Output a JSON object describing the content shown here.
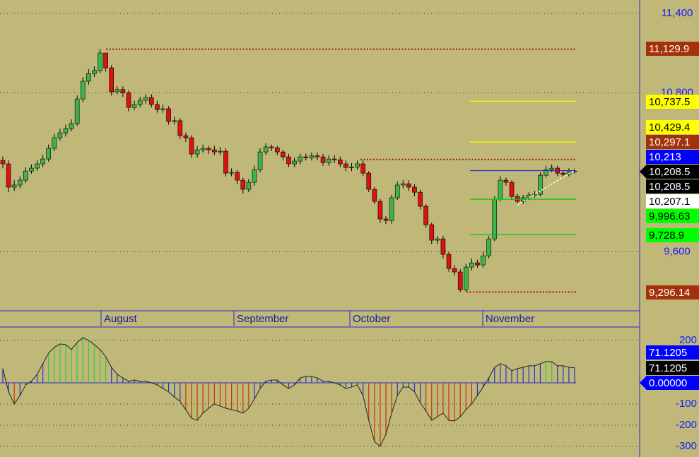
{
  "chart_data": [
    {
      "type": "candlestick",
      "months": [
        "August",
        "September",
        "October",
        "November"
      ],
      "open": [
        10290,
        10264,
        10088,
        10104,
        10141,
        10210,
        10232,
        10264,
        10301,
        10381,
        10461,
        10498,
        10530,
        10568,
        10754,
        10888,
        10946,
        10968,
        11101,
        10989,
        10808,
        10825,
        10800,
        10690,
        10712,
        10744,
        10765,
        10712,
        10674,
        10680,
        10584,
        10590,
        10477,
        10461,
        10338,
        10370,
        10381,
        10370,
        10354,
        10360,
        10194,
        10200,
        10141,
        10072,
        10125,
        10221,
        10354,
        10392,
        10385,
        10354,
        10317,
        10264,
        10285,
        10317,
        10310,
        10325,
        10317,
        10274,
        10301,
        10295,
        10264,
        10237,
        10240,
        10264,
        10194,
        10072,
        9981,
        9848,
        9837,
        10008,
        10104,
        10114,
        10088,
        10050,
        9944,
        9805,
        9688,
        9698,
        9581,
        9474,
        9448,
        9314,
        9485,
        9517,
        9501,
        9570,
        9698,
        9997,
        10141,
        10125,
        10018,
        9981,
        10008,
        10029,
        10034,
        10178,
        10221,
        10232,
        10194,
        10184,
        10205
      ],
      "high": [
        10320,
        10290,
        10140,
        10170,
        10240,
        10260,
        10290,
        10330,
        10410,
        10490,
        10530,
        10560,
        10600,
        10780,
        10920,
        10980,
        11000,
        11130,
        11090,
        11010,
        10850,
        10850,
        10820,
        10740,
        10770,
        10790,
        10790,
        10740,
        10710,
        10700,
        10620,
        10610,
        10500,
        10480,
        10400,
        10410,
        10400,
        10400,
        10390,
        10380,
        10230,
        10220,
        10160,
        10150,
        10250,
        10380,
        10420,
        10410,
        10400,
        10370,
        10340,
        10310,
        10340,
        10340,
        10350,
        10350,
        10340,
        10330,
        10330,
        10320,
        10290,
        10270,
        10290,
        10290,
        10210,
        10090,
        10000,
        9870,
        10030,
        10130,
        10140,
        10140,
        10110,
        10070,
        9960,
        9820,
        9720,
        9720,
        9600,
        9500,
        9470,
        9510,
        9550,
        9540,
        9600,
        9720,
        10020,
        10170,
        10160,
        10140,
        10040,
        10030,
        10050,
        10060,
        10200,
        10250,
        10260,
        10250,
        10210,
        10230,
        10230
      ],
      "low": [
        10230,
        10050,
        10060,
        10080,
        10120,
        10190,
        10210,
        10240,
        10280,
        10360,
        10440,
        10470,
        10510,
        10550,
        10730,
        10860,
        10920,
        10950,
        10960,
        10780,
        10790,
        10770,
        10660,
        10670,
        10690,
        10720,
        10690,
        10650,
        10650,
        10560,
        10560,
        10450,
        10430,
        10310,
        10310,
        10350,
        10340,
        10330,
        10330,
        10170,
        10170,
        10110,
        10040,
        10050,
        10100,
        10200,
        10330,
        10360,
        10330,
        10290,
        10240,
        10240,
        10260,
        10290,
        10290,
        10290,
        10250,
        10250,
        10270,
        10240,
        10210,
        10210,
        10220,
        10170,
        10050,
        9960,
        9820,
        9810,
        9810,
        9990,
        10080,
        10060,
        10020,
        9920,
        9780,
        9660,
        9660,
        9550,
        9450,
        9420,
        9296,
        9300,
        9460,
        9480,
        9480,
        9550,
        9680,
        9980,
        10100,
        9990,
        9960,
        9960,
        9990,
        10010,
        10020,
        10160,
        10200,
        10170,
        10160,
        10170,
        10190
      ],
      "close": [
        10264,
        10088,
        10104,
        10141,
        10210,
        10232,
        10264,
        10301,
        10381,
        10461,
        10498,
        10530,
        10568,
        10754,
        10888,
        10946,
        10968,
        11101,
        10989,
        10808,
        10825,
        10800,
        10690,
        10712,
        10744,
        10765,
        10712,
        10674,
        10680,
        10584,
        10590,
        10477,
        10461,
        10338,
        10370,
        10381,
        10370,
        10354,
        10360,
        10194,
        10200,
        10141,
        10072,
        10125,
        10221,
        10354,
        10392,
        10385,
        10354,
        10317,
        10264,
        10285,
        10317,
        10310,
        10325,
        10317,
        10274,
        10301,
        10295,
        10264,
        10237,
        10240,
        10264,
        10194,
        10072,
        9981,
        9848,
        9837,
        10008,
        10104,
        10114,
        10088,
        10050,
        9944,
        9805,
        9688,
        9698,
        9581,
        9474,
        9448,
        9314,
        9485,
        9517,
        9501,
        9570,
        9698,
        9997,
        10141,
        10125,
        10018,
        9981,
        10008,
        10029,
        10034,
        10178,
        10221,
        10232,
        10194,
        10184,
        10205,
        10210
      ],
      "up_color": "#3cb44b",
      "down_color": "#dd1111",
      "ylim": [
        9155,
        11501
      ],
      "yticks": [
        {
          "value": 9600,
          "label": "9,600"
        },
        {
          "value": 10800,
          "label": "10,800"
        },
        {
          "value": 11400,
          "label": "11,400"
        }
      ],
      "grid": true,
      "levels": [
        {
          "value": 11129.9,
          "label": "11,129.9",
          "color": "#a3320b",
          "text_color": "#ffffff",
          "line": "dotted",
          "line_color": "#b01010"
        },
        {
          "value": 10737.5,
          "label": "10,737.5",
          "color": "#ffff00",
          "text_color": "#000000",
          "line": "solid",
          "line_color": "#ffff00"
        },
        {
          "value": 10429.4,
          "label": "10,429.4",
          "color": "#ffff00",
          "text_color": "#000000",
          "line": "solid",
          "line_color": "#ffff00"
        },
        {
          "value": 10297.1,
          "label": "10,297.1",
          "color": "#a3320b",
          "text_color": "#ffffff",
          "line": "dotted",
          "line_color": "#b01010"
        },
        {
          "value": 10213,
          "label": "10,213",
          "color": "#0000ff",
          "text_color": "#ffffff",
          "line": "solid",
          "line_color": "#2a2ad0"
        },
        {
          "value": 10208.5,
          "label": "10,208.5",
          "color": "#000000",
          "text_color": "#ffffff",
          "arrow": true
        },
        {
          "value": 10208.5,
          "label": "10,208.5",
          "color": "#000000",
          "text_color": "#ffffff"
        },
        {
          "value": 10207.1,
          "label": "10,207.1",
          "color": "#ffffff",
          "text_color": "#000000"
        },
        {
          "value": 9996.63,
          "label": "9,996.63",
          "color": "#00ff00",
          "text_color": "#000000",
          "line": "solid",
          "line_color": "#00cc00"
        },
        {
          "value": 9728.9,
          "label": "9,728.9",
          "color": "#00ff00",
          "text_color": "#000000",
          "line": "solid",
          "line_color": "#00cc00"
        },
        {
          "value": 9296.14,
          "label": "9,296.14",
          "color": "#a3320b",
          "text_color": "#ffffff",
          "line": "dotted",
          "line_color": "#b01010"
        }
      ]
    },
    {
      "type": "histogram",
      "values": [
        67,
        -43,
        -100,
        -60,
        -10,
        7,
        40,
        90,
        140,
        167,
        183,
        180,
        157,
        190,
        213,
        200,
        180,
        157,
        123,
        73,
        40,
        23,
        7,
        13,
        7,
        7,
        0,
        -10,
        -27,
        -43,
        -67,
        -87,
        -127,
        -167,
        -177,
        -143,
        -120,
        -100,
        -110,
        -120,
        -127,
        -133,
        -143,
        -120,
        -77,
        -27,
        7,
        13,
        13,
        -10,
        -27,
        -10,
        23,
        30,
        30,
        23,
        7,
        7,
        0,
        -10,
        -27,
        -20,
        -10,
        -60,
        -177,
        -277,
        -300,
        -243,
        -143,
        -60,
        -20,
        -20,
        -43,
        -93,
        -133,
        -177,
        -160,
        -143,
        -177,
        -180,
        -160,
        -127,
        -100,
        -60,
        -20,
        23,
        73,
        90,
        80,
        57,
        67,
        73,
        80,
        80,
        90,
        100,
        100,
        80,
        80,
        73,
        71.1205
      ],
      "up_color": "#33cc33",
      "down_color": "#cc3300",
      "neutral_color": "#2233cc",
      "line_color": "#222222",
      "ylim": [
        -350,
        263
      ],
      "yticks": [
        -300,
        -200,
        -100,
        200
      ],
      "grid": true,
      "levels": [
        {
          "value": 71.1205,
          "label": "71.1205",
          "color": "#0000ff",
          "text_color": "#ffffff"
        },
        {
          "value": 71.1205,
          "label": "71.1205",
          "color": "#000000",
          "text_color": "#ffffff"
        },
        {
          "value": 0,
          "label": "0.00000",
          "color": "#0000ff",
          "text_color": "#ffffff",
          "arrow": true
        }
      ]
    }
  ]
}
